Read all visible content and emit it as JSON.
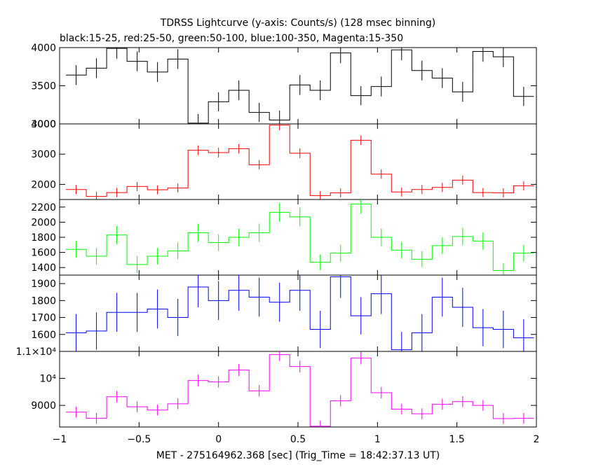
{
  "title": "TDRSS Lightcurve (y-axis: Counts/s) (128 msec binning)",
  "subtitle": "black:15-25, red:25-50, green:50-100, blue:100-350, Magenta:15-350",
  "xlabel": "MET - 275164962.368 [sec] (Trig_Time = 18:42:37.13 UT)",
  "chart_data": {
    "type": "line",
    "step": true,
    "x_range": [
      -1,
      2
    ],
    "x_ticks": [
      -1,
      -0.5,
      0,
      0.5,
      1,
      1.5,
      2
    ],
    "x_tick_labels": [
      "−1",
      "−0.5",
      "0",
      "0.5",
      "1",
      "1.5",
      "2"
    ],
    "bin_width": 0.128,
    "x": [
      -0.896,
      -0.768,
      -0.64,
      -0.512,
      -0.384,
      -0.256,
      -0.128,
      0.0,
      0.128,
      0.256,
      0.384,
      0.512,
      0.64,
      0.768,
      0.896,
      1.024,
      1.152,
      1.28,
      1.408,
      1.536,
      1.664,
      1.792,
      1.92
    ],
    "panels": [
      {
        "name": "black:15-25",
        "color": "#000000",
        "ylim": [
          3000,
          4000
        ],
        "y_ticks": [
          3000,
          3500,
          4000
        ],
        "y_tick_labels": [
          "3000",
          "3500",
          "4000"
        ],
        "values": [
          3640,
          3730,
          3990,
          3820,
          3680,
          3850,
          3010,
          3290,
          3440,
          3150,
          3050,
          3510,
          3440,
          3930,
          3370,
          3490,
          3970,
          3700,
          3600,
          3420,
          3950,
          3880,
          3360
        ],
        "errors": [
          130,
          130,
          135,
          130,
          130,
          130,
          120,
          125,
          130,
          125,
          125,
          130,
          130,
          135,
          125,
          130,
          135,
          130,
          130,
          130,
          135,
          135,
          125
        ]
      },
      {
        "name": "red:25-50",
        "color": "#ff0000",
        "ylim": [
          1500,
          4000
        ],
        "y_ticks": [
          2000,
          3000,
          4000
        ],
        "y_tick_labels": [
          "2000",
          "3000",
          "4000"
        ],
        "values": [
          1830,
          1600,
          1730,
          1930,
          1820,
          1880,
          3130,
          3050,
          3180,
          2650,
          3960,
          3030,
          1630,
          1720,
          3460,
          2340,
          1750,
          1830,
          1900,
          2140,
          1730,
          1720,
          1950
        ],
        "errors": [
          150,
          150,
          150,
          150,
          150,
          150,
          160,
          160,
          160,
          150,
          170,
          160,
          150,
          150,
          160,
          155,
          150,
          150,
          150,
          150,
          150,
          150,
          150
        ]
      },
      {
        "name": "green:50-100",
        "color": "#00ff00",
        "ylim": [
          1300,
          2300
        ],
        "y_ticks": [
          1400,
          1600,
          1800,
          2000,
          2200
        ],
        "y_tick_labels": [
          "1400",
          "1600",
          "1800",
          "2000",
          "2200"
        ],
        "values": [
          1640,
          1550,
          1830,
          1440,
          1550,
          1620,
          1860,
          1730,
          1800,
          1860,
          2130,
          2070,
          1470,
          1590,
          2240,
          1800,
          1630,
          1510,
          1690,
          1810,
          1750,
          1360,
          1590
        ],
        "errors": [
          110,
          110,
          120,
          110,
          110,
          110,
          120,
          110,
          115,
          120,
          125,
          125,
          105,
          110,
          130,
          115,
          110,
          105,
          110,
          115,
          115,
          100,
          110
        ]
      },
      {
        "name": "blue:100-350",
        "color": "#0000ff",
        "ylim": [
          1500,
          1950
        ],
        "y_ticks": [
          1600,
          1700,
          1800,
          1900
        ],
        "y_tick_labels": [
          "1600",
          "1700",
          "1800",
          "1900"
        ],
        "values": [
          1610,
          1620,
          1730,
          1730,
          1750,
          1700,
          1880,
          1800,
          1860,
          1820,
          1790,
          1860,
          1630,
          1940,
          1710,
          1840,
          1510,
          1610,
          1820,
          1760,
          1640,
          1630,
          1580
        ],
        "errors": [
          110,
          110,
          115,
          115,
          115,
          110,
          120,
          115,
          120,
          115,
          115,
          120,
          110,
          125,
          110,
          120,
          105,
          110,
          115,
          115,
          110,
          110,
          110
        ]
      },
      {
        "name": "Magenta:15-350",
        "color": "#ff00ff",
        "ylim": [
          8200,
          11000
        ],
        "y_ticks": [
          9000,
          10000,
          11000
        ],
        "y_tick_labels": [
          "9000",
          "10⁴",
          "1.1×10⁴"
        ],
        "values": [
          8750,
          8520,
          9320,
          8950,
          8830,
          9060,
          9920,
          9870,
          10310,
          9540,
          10880,
          10440,
          8230,
          9170,
          10750,
          9470,
          8860,
          8690,
          9040,
          9140,
          9000,
          8510,
          8520
        ],
        "errors": [
          200,
          200,
          210,
          200,
          200,
          200,
          220,
          210,
          220,
          210,
          230,
          220,
          200,
          210,
          230,
          210,
          200,
          200,
          200,
          200,
          200,
          200,
          200
        ]
      }
    ]
  }
}
